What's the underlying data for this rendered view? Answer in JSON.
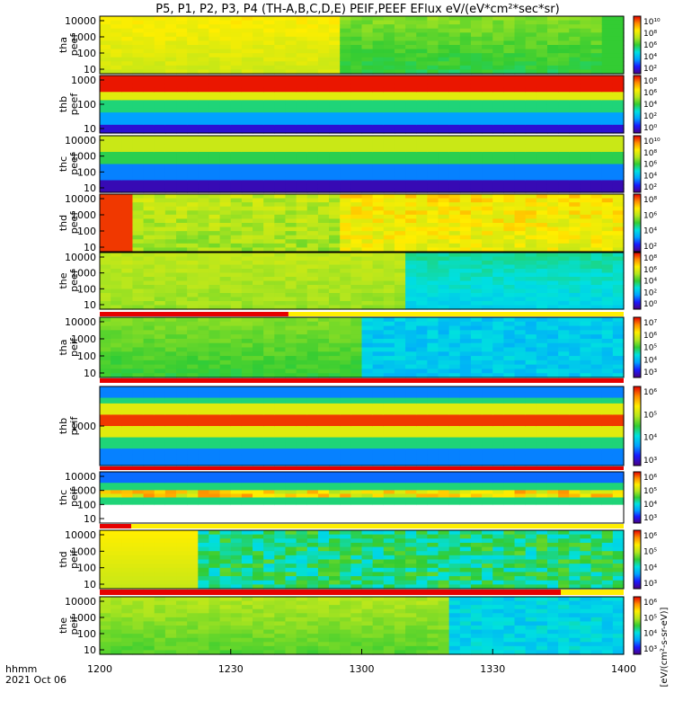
{
  "chart_data": {
    "type": "heatmap",
    "title": "P5, P1, P2, P3, P4 (TH-A,B,C,D,E) PEIF,PEEF EFlux eV/(eV*cm²*sec*sr)",
    "x_label_top": "hhmm",
    "x_label_bottom": "2021 Oct 06",
    "x_ticks": [
      "1200",
      "1230",
      "1300",
      "1330",
      "1400"
    ],
    "x_range": [
      "12:00",
      "14:00"
    ],
    "colorbar_unit": "[eV/(cm²-s-sr-eV)]",
    "panels": [
      {
        "probe": "tha",
        "species": "peef",
        "ylabel": [
          "tha",
          "peef"
        ],
        "yscale": "log",
        "yticks": [
          "10",
          "100",
          "1000",
          "10000"
        ],
        "cbar_ticks": [
          "10¹⁰",
          "10⁸",
          "10⁶",
          "10⁴",
          "10²"
        ],
        "profile": [
          "10",
          "100",
          "1000",
          "10000"
        ],
        "event_bar": false
      },
      {
        "probe": "thb",
        "species": "peef",
        "ylabel": [
          "thb",
          "peef"
        ],
        "yscale": "log",
        "yticks": [
          "10",
          "100",
          "1000"
        ],
        "cbar_ticks": [
          "10⁸",
          "10⁶",
          "10⁴",
          "10²",
          "10⁰"
        ],
        "event_bar": false
      },
      {
        "probe": "thc",
        "species": "peef",
        "ylabel": [
          "thc",
          "peef"
        ],
        "yscale": "log",
        "yticks": [
          "10",
          "100",
          "1000",
          "10000"
        ],
        "cbar_ticks": [
          "10¹⁰",
          "10⁸",
          "10⁶",
          "10⁴",
          "10²"
        ],
        "event_bar": false
      },
      {
        "probe": "thd",
        "species": "peef",
        "ylabel": [
          "thd",
          "peef"
        ],
        "yscale": "log",
        "yticks": [
          "10",
          "100",
          "1000",
          "10000"
        ],
        "cbar_ticks": [
          "10⁸",
          "10⁶",
          "10⁴",
          "10²"
        ],
        "event_bar": false
      },
      {
        "probe": "the",
        "species": "peef",
        "ylabel": [
          "the",
          "peef"
        ],
        "yscale": "log",
        "yticks": [
          "10",
          "100",
          "1000",
          "10000"
        ],
        "cbar_ticks": [
          "10⁸",
          "10⁶",
          "10⁴",
          "10²",
          "10⁰"
        ],
        "event_bar": true
      },
      {
        "probe": "tha",
        "species": "peif",
        "ylabel": [
          "tha",
          "peif"
        ],
        "yscale": "log",
        "yticks": [
          "10",
          "100",
          "1000",
          "10000"
        ],
        "cbar_ticks": [
          "10⁷",
          "10⁶",
          "10⁵",
          "10⁴",
          "10³"
        ],
        "event_bar": true
      },
      {
        "probe": "thb",
        "species": "peif",
        "ylabel": [
          "thb",
          "peif"
        ],
        "yscale": "log",
        "yticks": [
          "1000"
        ],
        "cbar_ticks": [
          "10⁶",
          "10⁵",
          "10⁴",
          "10³"
        ],
        "event_bar": true
      },
      {
        "probe": "thc",
        "species": "peif",
        "ylabel": [
          "thc",
          "peif"
        ],
        "yscale": "log",
        "yticks": [
          "10",
          "100",
          "1000",
          "10000"
        ],
        "cbar_ticks": [
          "10⁶",
          "10⁵",
          "10⁴",
          "10³"
        ],
        "event_bar": true
      },
      {
        "probe": "thd",
        "species": "peif",
        "ylabel": [
          "thd",
          "peif"
        ],
        "yscale": "log",
        "yticks": [
          "10",
          "100",
          "1000",
          "10000"
        ],
        "cbar_ticks": [
          "10⁶",
          "10⁵",
          "10⁴",
          "10³"
        ],
        "event_bar": true
      },
      {
        "probe": "the",
        "species": "peif",
        "ylabel": [
          "the",
          "peif"
        ],
        "yscale": "log",
        "yticks": [
          "10",
          "100",
          "1000",
          "10000"
        ],
        "cbar_ticks": [
          "10⁶",
          "10⁵",
          "10⁴",
          "10³"
        ],
        "event_bar": true
      }
    ]
  },
  "colors": {
    "colormap": [
      "#4b0082",
      "#1a1aff",
      "#00a2ff",
      "#00e0e0",
      "#33cc33",
      "#b4e61e",
      "#ffee00",
      "#ff8c00",
      "#e60000"
    ],
    "event_red": "#e60000",
    "event_yellow": "#ffee00"
  }
}
